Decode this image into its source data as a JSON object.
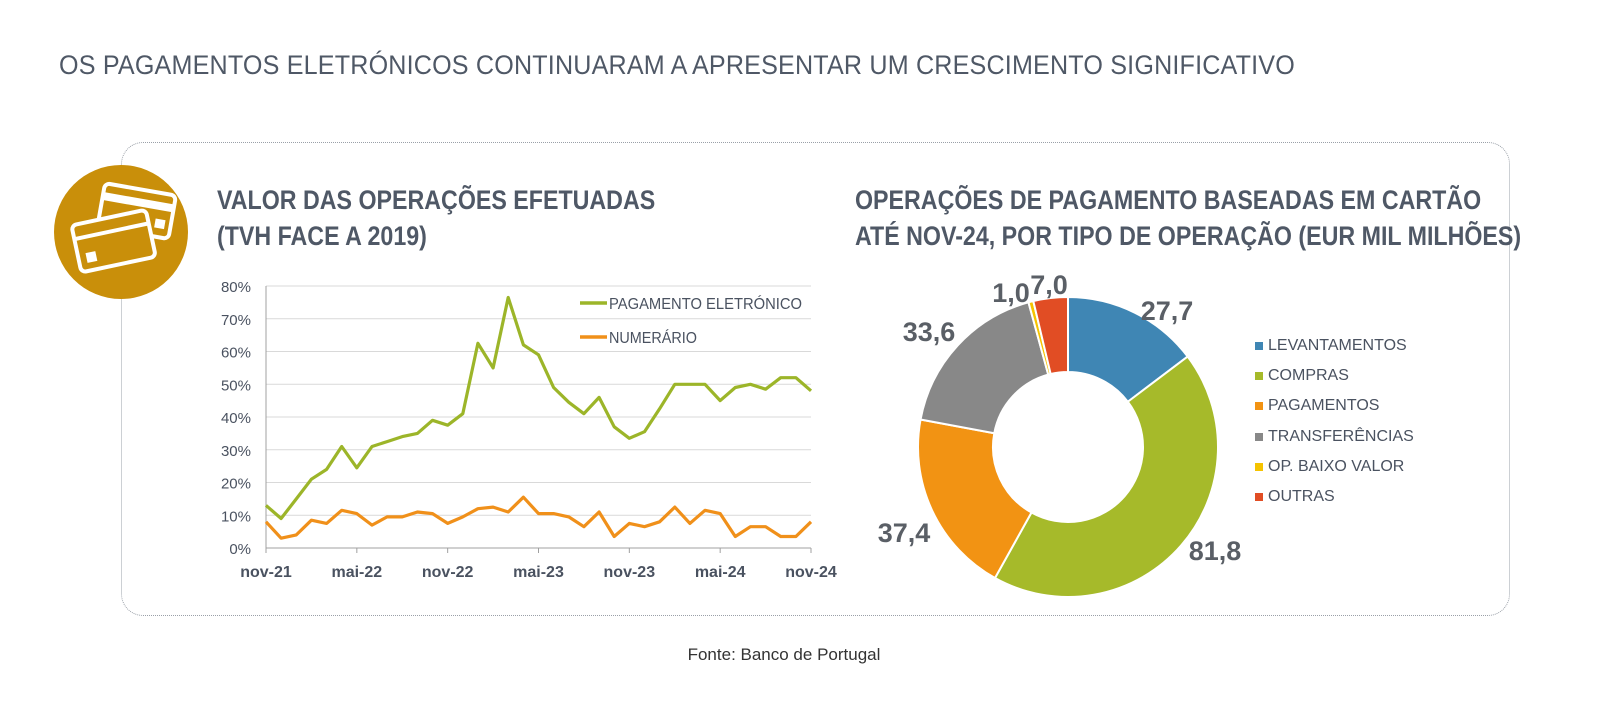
{
  "header": {
    "title": "OS PAGAMENTOS ELETRÓNICOS CONTINUARAM A APRESENTAR UM CRESCIMENTO SIGNIFICATIVO"
  },
  "badge": {
    "icon": "credit-cards-icon",
    "color": "#c98f0a"
  },
  "footer": {
    "source": "Fonte: Banco de Portugal"
  },
  "chart_data": [
    {
      "type": "line",
      "title_lines": [
        "VALOR DAS OPERAÇÕES EFETUADAS",
        "(TVH FACE A 2019)"
      ],
      "x_tick_labels": [
        "nov-21",
        "mai-22",
        "nov-22",
        "mai-23",
        "nov-23",
        "mai-24",
        "nov-24"
      ],
      "y_tick_labels": [
        "0%",
        "10%",
        "20%",
        "30%",
        "40%",
        "50%",
        "60%",
        "70%",
        "80%"
      ],
      "ylim": [
        0,
        80
      ],
      "grid": true,
      "legend_position": "top-right",
      "x": [
        "nov-21",
        "dez-21",
        "jan-22",
        "fev-22",
        "mar-22",
        "abr-22",
        "mai-22",
        "jun-22",
        "jul-22",
        "ago-22",
        "set-22",
        "out-22",
        "nov-22",
        "dez-22",
        "jan-23",
        "fev-23",
        "mar-23",
        "abr-23",
        "mai-23",
        "jun-23",
        "jul-23",
        "ago-23",
        "set-23",
        "out-23",
        "nov-23",
        "dez-23",
        "jan-24",
        "fev-24",
        "mar-24",
        "abr-24",
        "mai-24",
        "jun-24",
        "jul-24",
        "ago-24",
        "set-24",
        "out-24",
        "nov-24"
      ],
      "series": [
        {
          "name": "PAGAMENTO ELETRÓNICO",
          "color": "#9cb529",
          "values": [
            13,
            9,
            15,
            21,
            24,
            31,
            24.5,
            31,
            32.5,
            34,
            35,
            39,
            37.5,
            41,
            62.5,
            55,
            76.5,
            62,
            59,
            49,
            44.5,
            41,
            46,
            37,
            33.5,
            35.5,
            42.5,
            50,
            50,
            50,
            45,
            49,
            50,
            48.5,
            52,
            52,
            48
          ]
        },
        {
          "name": "NUMERÁRIO",
          "color": "#f0901a",
          "values": [
            8,
            3,
            4,
            8.5,
            7.5,
            11.5,
            10.5,
            7,
            9.5,
            9.5,
            11,
            10.5,
            7.5,
            9.5,
            12,
            12.5,
            11,
            15.5,
            10.5,
            10.5,
            9.5,
            6.5,
            11,
            3.5,
            7.5,
            6.5,
            8,
            12.5,
            7.5,
            11.5,
            10.5,
            3.5,
            6.5,
            6.5,
            3.5,
            3.5,
            8
          ]
        }
      ]
    },
    {
      "type": "pie",
      "donut": true,
      "title_lines": [
        "OPERAÇÕES DE PAGAMENTO BASEADAS EM CARTÃO",
        "ATÉ NOV-24, POR TIPO DE OPERAÇÃO (EUR MIL MILHÕES)"
      ],
      "categories": [
        "LEVANTAMENTOS",
        "COMPRAS",
        "PAGAMENTOS",
        "TRANSFERÊNCIAS",
        "OP. BAIXO VALOR",
        "OUTRAS"
      ],
      "values": [
        27.7,
        81.8,
        37.4,
        33.6,
        1.0,
        7.0
      ],
      "data_labels": [
        "27,7",
        "81,8",
        "37,4",
        "33,6",
        "1,0",
        "7,0"
      ],
      "colors": [
        "#3f86b4",
        "#a6ba2a",
        "#f29313",
        "#888888",
        "#f5c300",
        "#e14d24"
      ],
      "legend_position": "right"
    }
  ]
}
